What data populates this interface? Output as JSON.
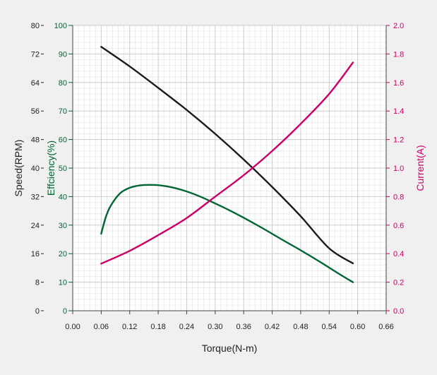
{
  "chart_data": {
    "type": "line",
    "title": "",
    "xlabel": "Torque(N-m)",
    "x_ticks": [
      "0.00",
      "0.06",
      "0.12",
      "0.18",
      "0.24",
      "0.30",
      "0.36",
      "0.42",
      "0.48",
      "0.54",
      "0.60",
      "0.66"
    ],
    "xlim": [
      0,
      0.66
    ],
    "grid": true,
    "axes": {
      "speed": {
        "label": "Speed(RPM)",
        "range": [
          0,
          80
        ],
        "color": "#222222",
        "ticks": [
          "0",
          "8",
          "16",
          "24",
          "32",
          "40",
          "48",
          "56",
          "64",
          "72",
          "80"
        ]
      },
      "efficiency": {
        "label": "Effciency(%)",
        "range": [
          0,
          100
        ],
        "color": "#006633",
        "ticks": [
          "0",
          "10",
          "20",
          "30",
          "40",
          "50",
          "60",
          "70",
          "80",
          "90",
          "100"
        ]
      },
      "current": {
        "label": "Current(A)",
        "range": [
          0,
          2
        ],
        "color": "#cc0066",
        "ticks": [
          "0.0",
          "0.2",
          "0.4",
          "0.6",
          "0.8",
          "1.0",
          "1.2",
          "1.4",
          "1.6",
          "1.8",
          "2.0"
        ]
      }
    },
    "series": [
      {
        "axis": "speed",
        "color": "#1a1a1a",
        "x": [
          0.06,
          0.12,
          0.18,
          0.24,
          0.3,
          0.36,
          0.42,
          0.48,
          0.54,
          0.59
        ],
        "values": [
          74,
          68.5,
          62.5,
          56.3,
          49.6,
          42.4,
          34.7,
          26.5,
          17.5,
          13.3
        ]
      },
      {
        "axis": "efficiency",
        "color": "#006633",
        "x": [
          0.06,
          0.07,
          0.08,
          0.1,
          0.12,
          0.14,
          0.16,
          0.18,
          0.21,
          0.24,
          0.27,
          0.3,
          0.33,
          0.36,
          0.4,
          0.44,
          0.48,
          0.52,
          0.56,
          0.59
        ],
        "values": [
          27,
          33,
          36.8,
          41.2,
          43.1,
          43.9,
          44.1,
          44,
          43.2,
          41.8,
          39.9,
          37.6,
          35.2,
          32.6,
          28.9,
          25,
          21.2,
          17.2,
          13,
          10
        ]
      },
      {
        "axis": "current",
        "color": "#cc0066",
        "x": [
          0.06,
          0.12,
          0.18,
          0.24,
          0.3,
          0.36,
          0.42,
          0.48,
          0.54,
          0.59
        ],
        "values": [
          0.33,
          0.42,
          0.53,
          0.65,
          0.8,
          0.95,
          1.12,
          1.31,
          1.52,
          1.74
        ]
      }
    ]
  }
}
